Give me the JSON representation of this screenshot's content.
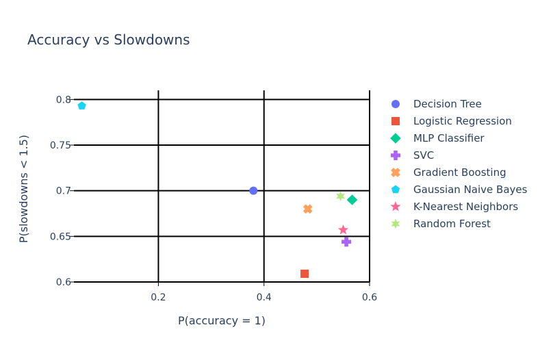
{
  "chart_data": {
    "type": "scatter",
    "title": "Accuracy vs Slowdowns",
    "xlabel": "P(accuracy = 1)",
    "ylabel": "P(slowdowns < 1.5)",
    "xlim": [
      0.04,
      0.6
    ],
    "ylim": [
      0.6,
      0.81
    ],
    "xticks": [
      0.2,
      0.4,
      0.6
    ],
    "xtick_labels": [
      "0.2",
      "0.4",
      "0.6"
    ],
    "yticks": [
      0.6,
      0.65,
      0.7,
      0.75,
      0.8
    ],
    "ytick_labels": [
      "0.6",
      "0.65",
      "0.7",
      "0.75",
      "0.8"
    ],
    "grid": true,
    "legend_position": "right",
    "series": [
      {
        "name": "Decision Tree",
        "symbol": "circle",
        "color": "#636efa",
        "x": 0.38,
        "y": 0.7
      },
      {
        "name": "Logistic Regression",
        "symbol": "square",
        "color": "#ef553b",
        "x": 0.477,
        "y": 0.609
      },
      {
        "name": "MLP Classifier",
        "symbol": "diamond",
        "color": "#00cc96",
        "x": 0.567,
        "y": 0.69
      },
      {
        "name": "SVC",
        "symbol": "cross",
        "color": "#ab63fa",
        "x": 0.556,
        "y": 0.644
      },
      {
        "name": "Gradient Boosting",
        "symbol": "x",
        "color": "#ffa15a",
        "x": 0.483,
        "y": 0.68
      },
      {
        "name": "Gaussian Naive Bayes",
        "symbol": "pentagon",
        "color": "#19d3f3",
        "x": 0.055,
        "y": 0.793
      },
      {
        "name": "K-Nearest Neighbors",
        "symbol": "star",
        "color": "#ff6692",
        "x": 0.55,
        "y": 0.657
      },
      {
        "name": "Random Forest",
        "symbol": "star6",
        "color": "#b6e880",
        "x": 0.545,
        "y": 0.694
      }
    ]
  }
}
